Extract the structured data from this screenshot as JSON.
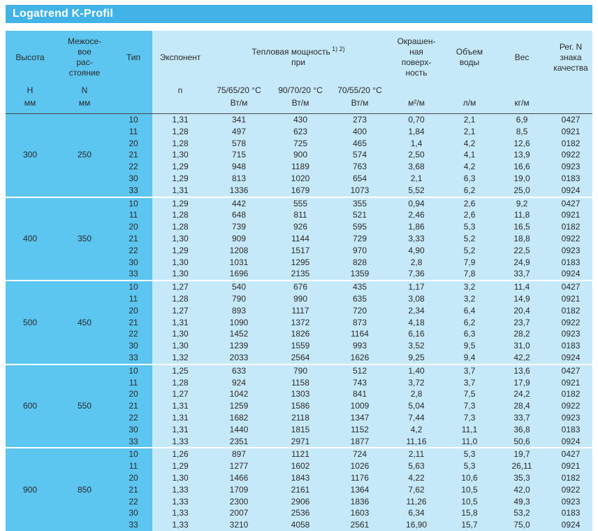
{
  "title": "Logatrend K-Profil",
  "colors": {
    "title_bar": "#41b3e6",
    "dark_column": "#5cc5f0",
    "light_column": "#c6e9f9",
    "header_rule": "#454545",
    "group_separator": "#ffffff",
    "title_text": "#ffffff",
    "body_text": "#2a2a2a"
  },
  "header": {
    "label_cols": [
      {
        "lines": [
          "Высота"
        ],
        "shade": "dark",
        "span": 1
      },
      {
        "lines": [
          "Межосе-",
          "вое",
          "рас-",
          "стояние"
        ],
        "shade": "dark",
        "span": 1
      },
      {
        "lines": [
          "Тип"
        ],
        "shade": "dark",
        "span": 1
      },
      {
        "lines": [
          "Экспонент"
        ],
        "shade": "light",
        "span": 1
      },
      {
        "lines": [
          "Тепловая мощность",
          "при"
        ],
        "sup": "1) 2)",
        "shade": "light",
        "span": 3
      },
      {
        "lines": [
          "Окрашен-",
          "ная",
          "поверх-",
          "ность"
        ],
        "shade": "light",
        "span": 1
      },
      {
        "lines": [
          "Объем",
          "воды"
        ],
        "shade": "light",
        "span": 1
      },
      {
        "lines": [
          "Вес"
        ],
        "shade": "light",
        "span": 1
      },
      {
        "lines": [
          "Рег. N",
          "знака",
          "качества"
        ],
        "shade": "light",
        "span": 1
      }
    ],
    "sym_row": [
      "H",
      "N",
      "",
      "n",
      "75/65/20 °C",
      "90/70/20 °C",
      "70/55/20 °C",
      "",
      "",
      "",
      ""
    ],
    "unit_row": [
      "мм",
      "мм",
      "",
      "",
      "Вт/м",
      "Вт/м",
      "Вт/м",
      "м²/м",
      "л/м",
      "кг/м",
      ""
    ],
    "col_shades": [
      "dark",
      "dark",
      "dark",
      "light",
      "light",
      "light",
      "light",
      "light",
      "light",
      "light",
      "light"
    ]
  },
  "groups": [
    {
      "height": "300",
      "spacing": "250",
      "rows": [
        [
          "10",
          "1,31",
          "341",
          "430",
          "273",
          "0,70",
          "2,1",
          "6,9",
          "0427"
        ],
        [
          "11",
          "1,28",
          "497",
          "623",
          "400",
          "1,84",
          "2,1",
          "8,5",
          "0921"
        ],
        [
          "20",
          "1,28",
          "578",
          "725",
          "465",
          "1,4",
          "4,2",
          "12,6",
          "0182"
        ],
        [
          "21",
          "1,30",
          "715",
          "900",
          "574",
          "2,50",
          "4,1",
          "13,9",
          "0922"
        ],
        [
          "22",
          "1,29",
          "948",
          "1189",
          "763",
          "3,68",
          "4,2",
          "16,6",
          "0923"
        ],
        [
          "30",
          "1,29",
          "813",
          "1020",
          "654",
          "2,1",
          "6,3",
          "19,0",
          "0183"
        ],
        [
          "33",
          "1,31",
          "1336",
          "1679",
          "1073",
          "5,52",
          "6,2",
          "25,0",
          "0924"
        ]
      ]
    },
    {
      "height": "400",
      "spacing": "350",
      "rows": [
        [
          "10",
          "1,29",
          "442",
          "555",
          "355",
          "0,94",
          "2,6",
          "9,2",
          "0427"
        ],
        [
          "11",
          "1,28",
          "648",
          "811",
          "521",
          "2,46",
          "2,6",
          "11,8",
          "0921"
        ],
        [
          "20",
          "1,28",
          "739",
          "926",
          "595",
          "1,86",
          "5,3",
          "16,5",
          "0182"
        ],
        [
          "21",
          "1,30",
          "909",
          "1144",
          "729",
          "3,33",
          "5,2",
          "18,8",
          "0922"
        ],
        [
          "22",
          "1,29",
          "1208",
          "1517",
          "970",
          "4,90",
          "5,2",
          "22,5",
          "0923"
        ],
        [
          "30",
          "1,30",
          "1031",
          "1295",
          "828",
          "2,8",
          "7,9",
          "24,9",
          "0183"
        ],
        [
          "33",
          "1,30",
          "1696",
          "2135",
          "1359",
          "7,36",
          "7,8",
          "33,7",
          "0924"
        ]
      ]
    },
    {
      "height": "500",
      "spacing": "450",
      "rows": [
        [
          "10",
          "1,27",
          "540",
          "676",
          "435",
          "1,17",
          "3,2",
          "11,4",
          "0427"
        ],
        [
          "11",
          "1,28",
          "790",
          "990",
          "635",
          "3,08",
          "3,2",
          "14,9",
          "0921"
        ],
        [
          "20",
          "1,27",
          "893",
          "1117",
          "720",
          "2,34",
          "6,4",
          "20,4",
          "0182"
        ],
        [
          "21",
          "1,31",
          "1090",
          "1372",
          "873",
          "4,18",
          "6,2",
          "23,7",
          "0922"
        ],
        [
          "22",
          "1,30",
          "1452",
          "1826",
          "1164",
          "6,16",
          "6,3",
          "28,2",
          "0923"
        ],
        [
          "30",
          "1,30",
          "1239",
          "1559",
          "993",
          "3,52",
          "9,5",
          "31,0",
          "0183"
        ],
        [
          "33",
          "1,32",
          "2033",
          "2564",
          "1626",
          "9,25",
          "9,4",
          "42,2",
          "0924"
        ]
      ]
    },
    {
      "height": "600",
      "spacing": "550",
      "rows": [
        [
          "10",
          "1,25",
          "633",
          "790",
          "512",
          "1,40",
          "3,7",
          "13,6",
          "0427"
        ],
        [
          "11",
          "1,28",
          "924",
          "1158",
          "743",
          "3,72",
          "3,7",
          "17,9",
          "0921"
        ],
        [
          "20",
          "1,27",
          "1042",
          "1303",
          "841",
          "2,8",
          "7,5",
          "24,2",
          "0182"
        ],
        [
          "21",
          "1,31",
          "1259",
          "1586",
          "1009",
          "5,04",
          "7,3",
          "28,4",
          "0922"
        ],
        [
          "22",
          "1,31",
          "1682",
          "2118",
          "1347",
          "7,44",
          "7,3",
          "33,7",
          "0923"
        ],
        [
          "30",
          "1,31",
          "1440",
          "1815",
          "1152",
          "4,2",
          "11,1",
          "36,8",
          "0183"
        ],
        [
          "33",
          "1,33",
          "2351",
          "2971",
          "1877",
          "11,16",
          "11,0",
          "50,6",
          "0924"
        ]
      ]
    },
    {
      "height": "900",
      "spacing": "850",
      "rows": [
        [
          "10",
          "1,26",
          "897",
          "1121",
          "724",
          "2,11",
          "5,3",
          "19,7",
          "0427"
        ],
        [
          "11",
          "1,29",
          "1277",
          "1602",
          "1026",
          "5,63",
          "5,3",
          "26,11",
          "0921"
        ],
        [
          "20",
          "1,30",
          "1466",
          "1843",
          "1176",
          "4,22",
          "10,6",
          "35,3",
          "0182"
        ],
        [
          "21",
          "1,33",
          "1709",
          "2161",
          "1364",
          "7,62",
          "10,5",
          "42,0",
          "0922"
        ],
        [
          "22",
          "1,33",
          "2300",
          "2906",
          "1836",
          "11,26",
          "10,5",
          "49,3",
          "0923"
        ],
        [
          "30",
          "1,33",
          "2007",
          "2536",
          "1603",
          "6,34",
          "15,8",
          "53,2",
          "0183"
        ],
        [
          "33",
          "1,33",
          "3210",
          "4058",
          "2561",
          "16,90",
          "15,7",
          "75,0",
          "0924"
        ]
      ]
    }
  ]
}
